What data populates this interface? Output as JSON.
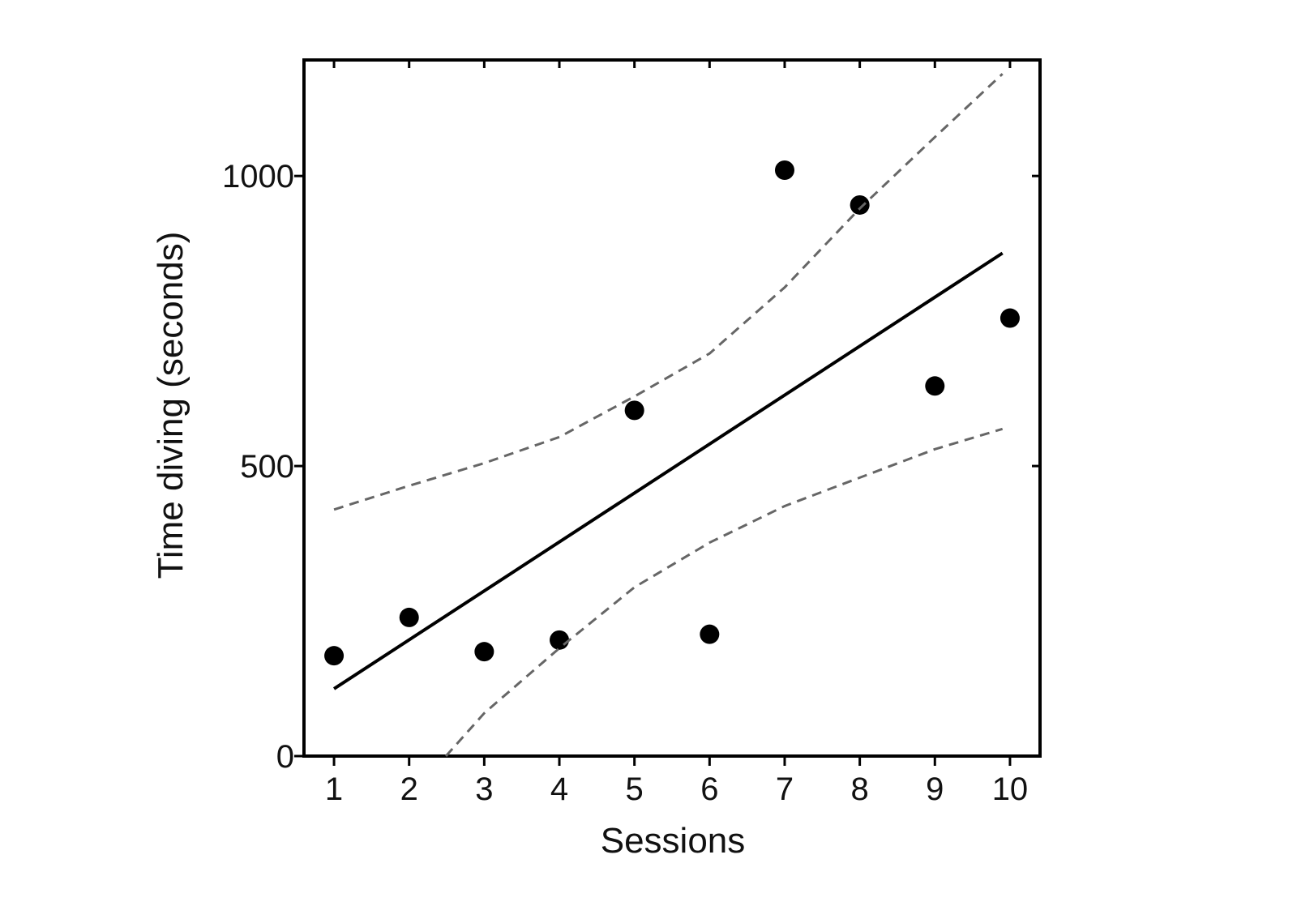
{
  "chart_data": {
    "type": "scatter",
    "x_label": "Sessions",
    "y_label": "Time diving (seconds)",
    "xlim": [
      0.6,
      10.4
    ],
    "ylim": [
      0,
      1200
    ],
    "xticks": [
      1,
      2,
      3,
      4,
      5,
      6,
      7,
      8,
      9,
      10
    ],
    "yticks": [
      0,
      500,
      1000
    ],
    "series": [
      {
        "type": "scatter",
        "color": "#000000",
        "x": [
          1,
          2,
          3,
          4,
          5,
          6,
          7,
          8,
          9,
          10
        ],
        "values": [
          173,
          239,
          180,
          200,
          596,
          210,
          1010,
          950,
          638,
          755
        ]
      },
      {
        "type": "line",
        "color": "#000000",
        "dash": false,
        "x": [
          1,
          9.9
        ],
        "values": [
          116,
          867
        ]
      },
      {
        "type": "line",
        "color": "#666666",
        "dash": true,
        "x": [
          1,
          2,
          3,
          4,
          5,
          6,
          7,
          8,
          9,
          9.9
        ],
        "values": [
          425,
          466,
          505,
          550,
          620,
          694,
          808,
          944,
          1067,
          1176
        ]
      },
      {
        "type": "line",
        "color": "#666666",
        "dash": true,
        "x": [
          2.49,
          3,
          4,
          5,
          6,
          7,
          8,
          9,
          9.9
        ],
        "values": [
          0,
          74,
          186,
          291,
          368,
          431,
          480,
          529,
          564
        ]
      }
    ]
  }
}
